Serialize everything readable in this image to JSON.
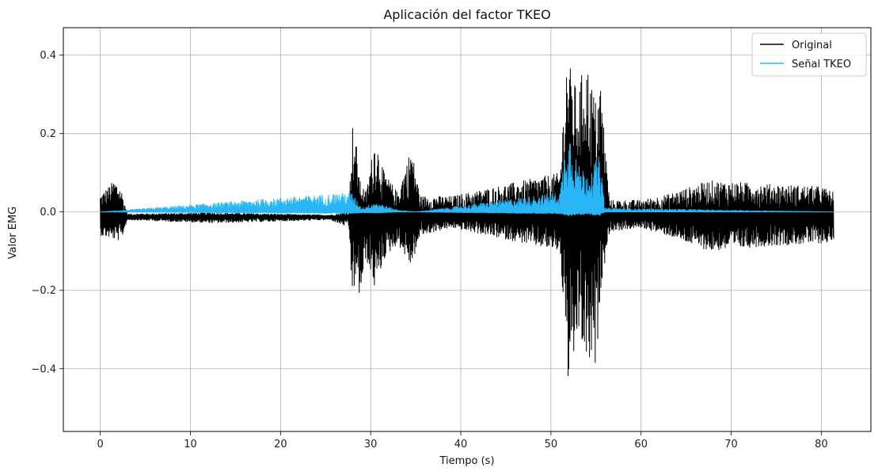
{
  "chart_data": {
    "type": "line",
    "title": "Aplicación del factor TKEO",
    "xlabel": "Tiempo (s)",
    "ylabel": "Valor EMG",
    "xlim": [
      -4.1,
      85.5
    ],
    "ylim": [
      -0.56,
      0.47
    ],
    "xticks": [
      0,
      10,
      20,
      30,
      40,
      50,
      60,
      70,
      80
    ],
    "xtick_labels": [
      "0",
      "10",
      "20",
      "30",
      "40",
      "50",
      "60",
      "70",
      "80"
    ],
    "yticks": [
      -0.4,
      -0.2,
      0.0,
      0.2,
      0.4
    ],
    "ytick_labels": [
      "−0.4",
      "−0.2",
      "0.0",
      "0.2",
      "0.4"
    ],
    "grid": true,
    "legend_position": "top-right",
    "series": [
      {
        "name": "Original",
        "color": "#000000",
        "baseline": -0.012,
        "envelope_points": [
          {
            "x": 0.0,
            "max": 0.043,
            "min": -0.06
          },
          {
            "x": 1.6,
            "max": 0.082,
            "min": -0.07
          },
          {
            "x": 2.3,
            "max": 0.06,
            "min": -0.075
          },
          {
            "x": 3.0,
            "max": -0.005,
            "min": -0.02
          },
          {
            "x": 12.5,
            "max": -0.002,
            "min": -0.028
          },
          {
            "x": 25.5,
            "max": -0.008,
            "min": -0.02
          },
          {
            "x": 27.6,
            "max": 0.0,
            "min": -0.04
          },
          {
            "x": 27.9,
            "max": 0.235,
            "min": -0.21
          },
          {
            "x": 28.5,
            "max": 0.16,
            "min": -0.18
          },
          {
            "x": 28.8,
            "max": 0.08,
            "min": -0.225
          },
          {
            "x": 29.5,
            "max": 0.05,
            "min": -0.12
          },
          {
            "x": 30.5,
            "max": 0.195,
            "min": -0.2
          },
          {
            "x": 31.5,
            "max": 0.1,
            "min": -0.12
          },
          {
            "x": 33.0,
            "max": 0.05,
            "min": -0.08
          },
          {
            "x": 34.5,
            "max": 0.165,
            "min": -0.14
          },
          {
            "x": 35.5,
            "max": 0.04,
            "min": -0.06
          },
          {
            "x": 39.0,
            "max": 0.04,
            "min": -0.04
          },
          {
            "x": 51.0,
            "max": 0.1,
            "min": -0.1
          },
          {
            "x": 51.5,
            "max": 0.3,
            "min": -0.28
          },
          {
            "x": 51.8,
            "max": 0.42,
            "min": -0.35
          },
          {
            "x": 52.0,
            "max": 0.38,
            "min": -0.51
          },
          {
            "x": 53.0,
            "max": 0.3,
            "min": -0.3
          },
          {
            "x": 53.8,
            "max": 0.4,
            "min": -0.38
          },
          {
            "x": 55.0,
            "max": 0.28,
            "min": -0.41
          },
          {
            "x": 55.5,
            "max": 0.34,
            "min": -0.2
          },
          {
            "x": 56.5,
            "max": 0.03,
            "min": -0.05
          },
          {
            "x": 60.0,
            "max": 0.03,
            "min": -0.04
          },
          {
            "x": 63.0,
            "max": 0.045,
            "min": -0.06
          },
          {
            "x": 67.6,
            "max": 0.08,
            "min": -0.1
          },
          {
            "x": 75.0,
            "max": 0.07,
            "min": -0.085
          },
          {
            "x": 80.0,
            "max": 0.065,
            "min": -0.08
          },
          {
            "x": 81.4,
            "max": 0.05,
            "min": -0.075
          }
        ]
      },
      {
        "name": "Señal TKEO",
        "color": "#29b6f6",
        "baseline": 0.0,
        "envelope_points": [
          {
            "x": 0.0,
            "max": 0.0,
            "min": 0.0
          },
          {
            "x": 27.9,
            "max": 0.05,
            "min": -0.004
          },
          {
            "x": 29.0,
            "max": 0.01,
            "min": -0.002
          },
          {
            "x": 30.5,
            "max": 0.025,
            "min": -0.003
          },
          {
            "x": 33.0,
            "max": 0.005,
            "min": 0.0
          },
          {
            "x": 35.0,
            "max": 0.0,
            "min": 0.0
          },
          {
            "x": 51.0,
            "max": 0.05,
            "min": -0.005
          },
          {
            "x": 51.9,
            "max": 0.22,
            "min": -0.01
          },
          {
            "x": 53.0,
            "max": 0.12,
            "min": -0.008
          },
          {
            "x": 54.0,
            "max": 0.1,
            "min": -0.006
          },
          {
            "x": 55.4,
            "max": 0.145,
            "min": -0.01
          },
          {
            "x": 56.0,
            "max": 0.01,
            "min": 0.0
          },
          {
            "x": 81.4,
            "max": 0.0,
            "min": 0.0
          }
        ]
      }
    ]
  }
}
